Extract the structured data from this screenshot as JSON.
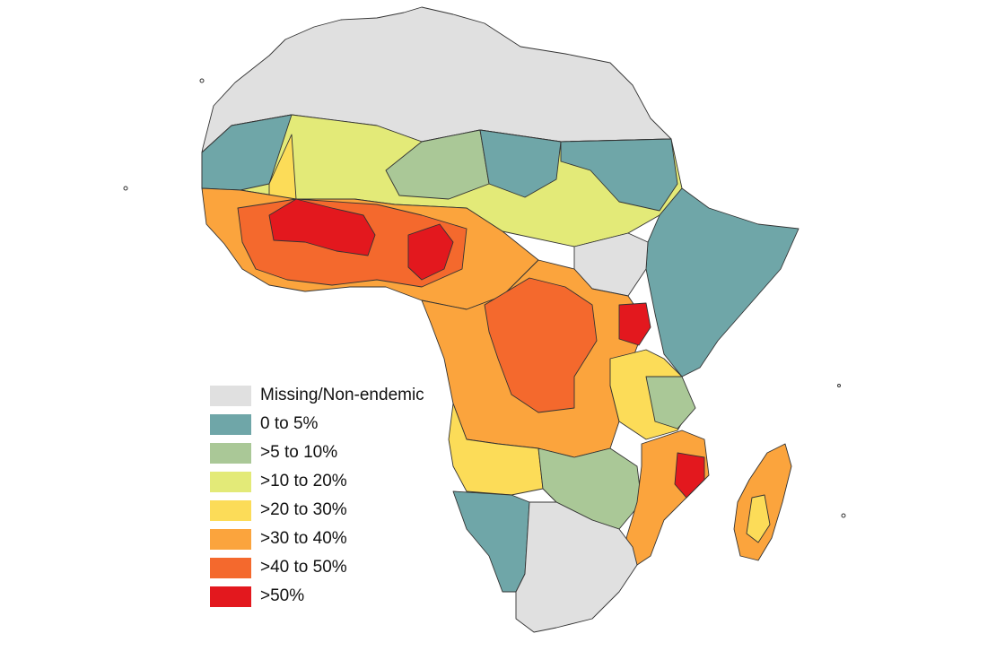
{
  "legend": {
    "items": [
      {
        "label": "Missing/Non-endemic",
        "color": "#e0e0e0"
      },
      {
        "label": "0 to 5%",
        "color": "#6fa6a8"
      },
      {
        "label": ">5 to 10%",
        "color": "#aac897"
      },
      {
        "label": ">10 to 20%",
        "color": "#e3ea78"
      },
      {
        "label": ">20 to 30%",
        "color": "#fcdc58"
      },
      {
        "label": ">30 to 40%",
        "color": "#fba43d"
      },
      {
        "label": ">40 to 50%",
        "color": "#f4692d"
      },
      {
        "label": ">50%",
        "color": "#e3181e"
      }
    ]
  }
}
